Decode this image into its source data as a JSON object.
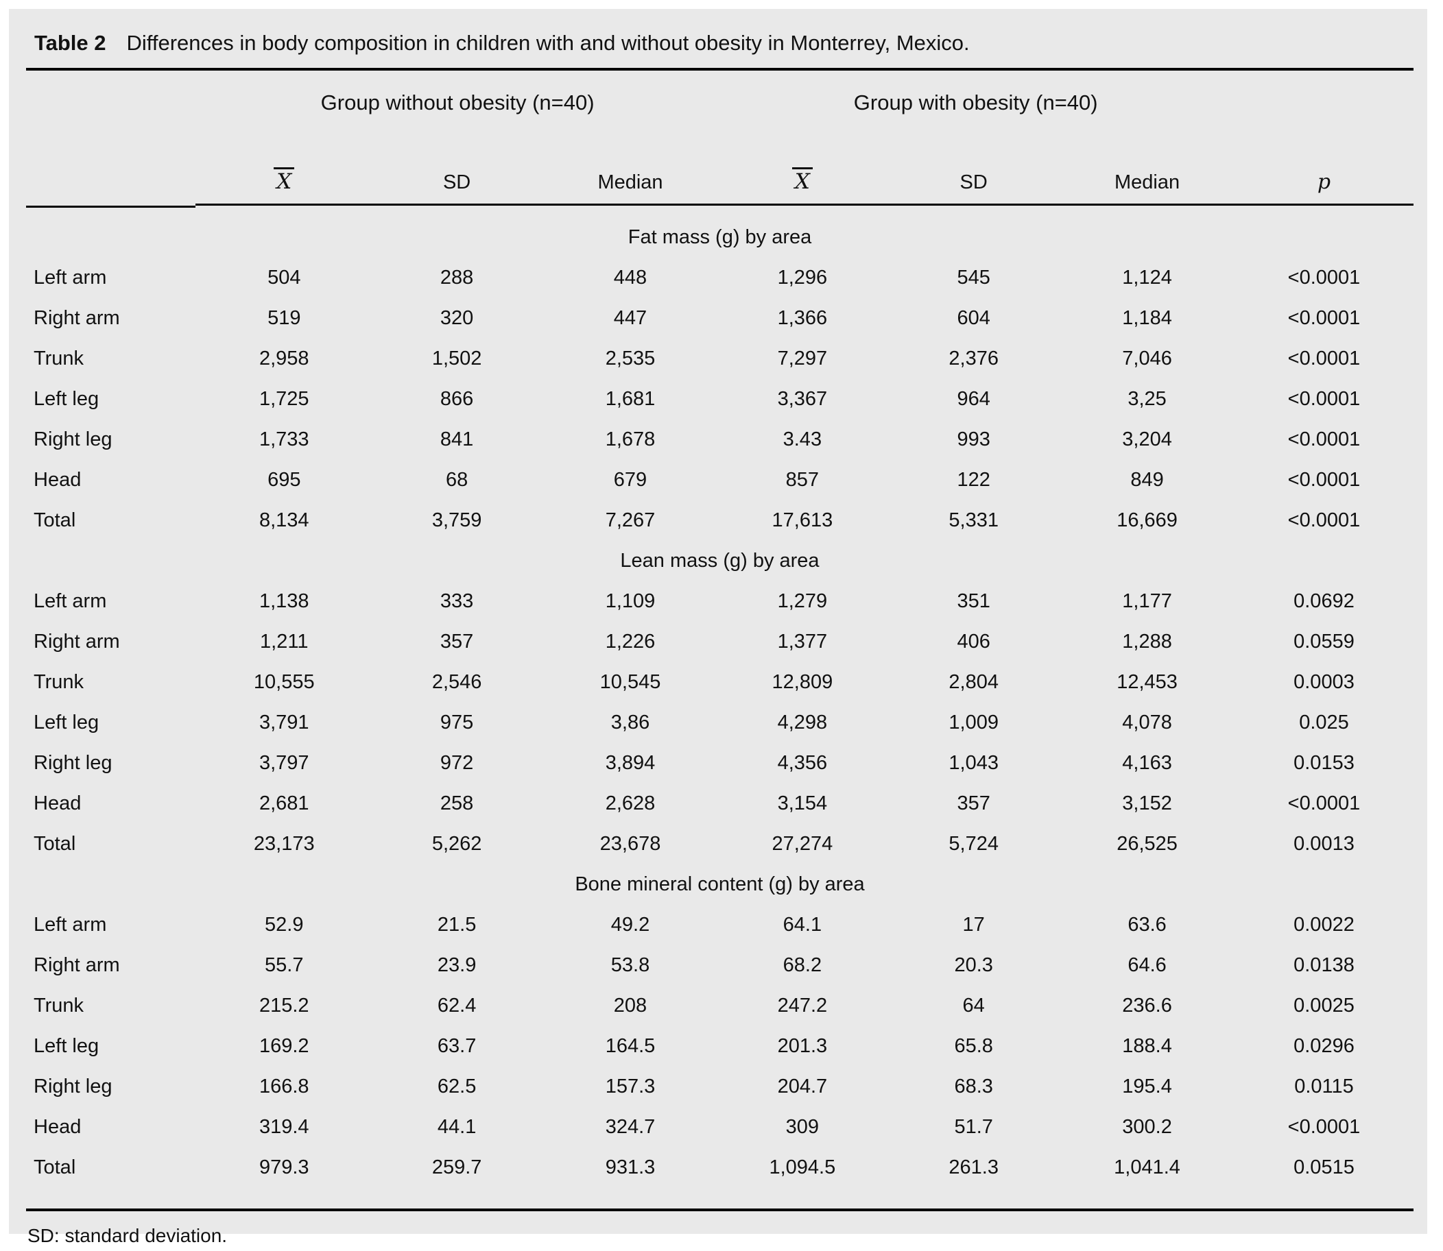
{
  "title": {
    "label": "Table 2",
    "text": "Differences in body composition in children with and without obesity in Monterrey, Mexico."
  },
  "groups": [
    {
      "label": "Group without obesity (n=40)"
    },
    {
      "label": "Group with obesity (n=40)"
    }
  ],
  "columns": {
    "mean": "X",
    "sd": "SD",
    "median": "Median",
    "mean2": "X",
    "sd2": "SD",
    "median2": "Median",
    "p": "p"
  },
  "sections": [
    {
      "header": "Fat mass (g) by area",
      "rows": [
        {
          "label": "Left arm",
          "values": [
            "504",
            "288",
            "448",
            "1,296",
            "545",
            "1,124",
            "<0.0001"
          ]
        },
        {
          "label": "Right arm",
          "values": [
            "519",
            "320",
            "447",
            "1,366",
            "604",
            "1,184",
            "<0.0001"
          ]
        },
        {
          "label": "Trunk",
          "values": [
            "2,958",
            "1,502",
            "2,535",
            "7,297",
            "2,376",
            "7,046",
            "<0.0001"
          ]
        },
        {
          "label": "Left leg",
          "values": [
            "1,725",
            "866",
            "1,681",
            "3,367",
            "964",
            "3,25",
            "<0.0001"
          ]
        },
        {
          "label": "Right leg",
          "values": [
            "1,733",
            "841",
            "1,678",
            "3.43",
            "993",
            "3,204",
            "<0.0001"
          ]
        },
        {
          "label": "Head",
          "values": [
            "695",
            "68",
            "679",
            "857",
            "122",
            "849",
            "<0.0001"
          ]
        },
        {
          "label": "Total",
          "values": [
            "8,134",
            "3,759",
            "7,267",
            "17,613",
            "5,331",
            "16,669",
            "<0.0001"
          ]
        }
      ]
    },
    {
      "header": "Lean mass (g) by area",
      "rows": [
        {
          "label": "Left arm",
          "values": [
            "1,138",
            "333",
            "1,109",
            "1,279",
            "351",
            "1,177",
            "0.0692"
          ]
        },
        {
          "label": "Right arm",
          "values": [
            "1,211",
            "357",
            "1,226",
            "1,377",
            "406",
            "1,288",
            "0.0559"
          ]
        },
        {
          "label": "Trunk",
          "values": [
            "10,555",
            "2,546",
            "10,545",
            "12,809",
            "2,804",
            "12,453",
            "0.0003"
          ]
        },
        {
          "label": "Left leg",
          "values": [
            "3,791",
            "975",
            "3,86",
            "4,298",
            "1,009",
            "4,078",
            "0.025"
          ]
        },
        {
          "label": "Right leg",
          "values": [
            "3,797",
            "972",
            "3,894",
            "4,356",
            "1,043",
            "4,163",
            "0.0153"
          ]
        },
        {
          "label": "Head",
          "values": [
            "2,681",
            "258",
            "2,628",
            "3,154",
            "357",
            "3,152",
            "<0.0001"
          ]
        },
        {
          "label": "Total",
          "values": [
            "23,173",
            "5,262",
            "23,678",
            "27,274",
            "5,724",
            "26,525",
            "0.0013"
          ]
        }
      ]
    },
    {
      "header": "Bone mineral content (g) by area",
      "rows": [
        {
          "label": "Left arm",
          "values": [
            "52.9",
            "21.5",
            "49.2",
            "64.1",
            "17",
            "63.6",
            "0.0022"
          ]
        },
        {
          "label": "Right arm",
          "values": [
            "55.7",
            "23.9",
            "53.8",
            "68.2",
            "20.3",
            "64.6",
            "0.0138"
          ]
        },
        {
          "label": "Trunk",
          "values": [
            "215.2",
            "62.4",
            "208",
            "247.2",
            "64",
            "236.6",
            "0.0025"
          ]
        },
        {
          "label": "Left leg",
          "values": [
            "169.2",
            "63.7",
            "164.5",
            "201.3",
            "65.8",
            "188.4",
            "0.0296"
          ]
        },
        {
          "label": "Right leg",
          "values": [
            "166.8",
            "62.5",
            "157.3",
            "204.7",
            "68.3",
            "195.4",
            "0.0115"
          ]
        },
        {
          "label": "Head",
          "values": [
            "319.4",
            "44.1",
            "324.7",
            "309",
            "51.7",
            "300.2",
            "<0.0001"
          ]
        },
        {
          "label": "Total",
          "values": [
            "979.3",
            "259.7",
            "931.3",
            "1,094.5",
            "261.3",
            "1,041.4",
            "0.0515"
          ]
        }
      ]
    }
  ],
  "footnote": "SD: standard deviation.",
  "colors": {
    "panel_bg": "#e9e9e9",
    "text": "#111111",
    "rule": "#000000"
  }
}
